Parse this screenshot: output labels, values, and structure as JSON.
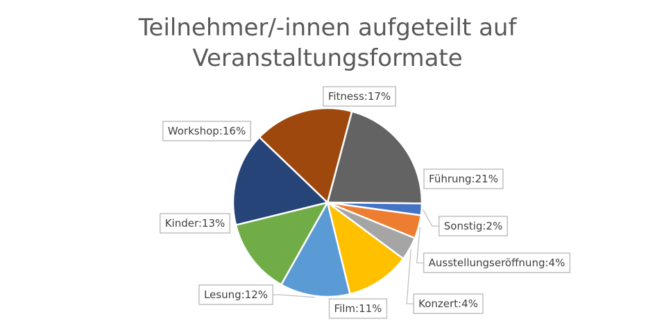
{
  "chart_data": {
    "type": "pie",
    "title_lines": [
      "Teilnehmer/-innen aufgeteilt auf",
      "Veranstaltungsformate"
    ],
    "slices": [
      {
        "label": "Führung",
        "value": 21,
        "color": "#636363"
      },
      {
        "label": "Sonstig",
        "value": 2,
        "color": "#4472C4"
      },
      {
        "label": "Ausstellungseröffnung",
        "value": 4,
        "color": "#ED7D31"
      },
      {
        "label": "Konzert",
        "value": 4,
        "color": "#A5A5A5"
      },
      {
        "label": "Film",
        "value": 11,
        "color": "#FFC000"
      },
      {
        "label": "Lesung",
        "value": 12,
        "color": "#5B9BD5"
      },
      {
        "label": "Kinder",
        "value": 13,
        "color": "#70AD47"
      },
      {
        "label": "Workshop",
        "value": 16,
        "color": "#264478"
      },
      {
        "label": "Fitness",
        "value": 17,
        "color": "#9E480E"
      }
    ],
    "label_format": "{label}:{value}%",
    "legend": "none"
  }
}
